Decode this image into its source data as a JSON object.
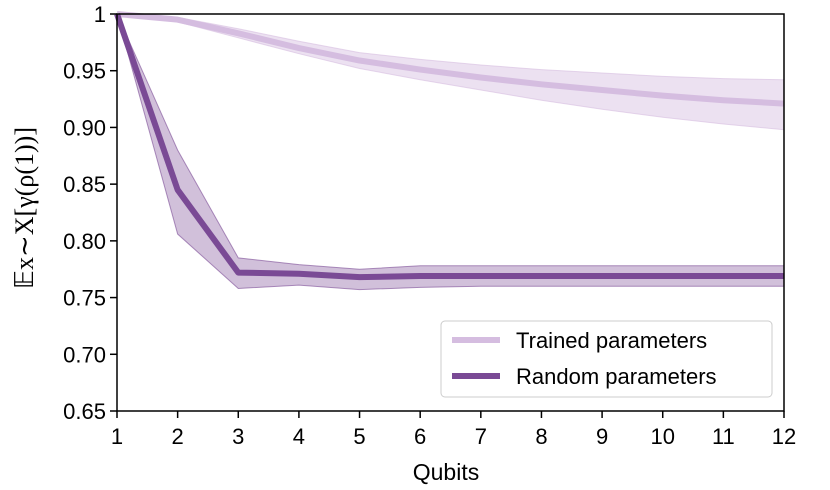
{
  "chart_data": {
    "type": "line",
    "xlabel": "Qubits",
    "ylabel": "𝔼x∼X[γ(ρ(1))]",
    "x": [
      1,
      2,
      3,
      4,
      5,
      6,
      7,
      8,
      9,
      10,
      11,
      12
    ],
    "xlim": [
      1,
      12
    ],
    "ylim": [
      0.65,
      1.0
    ],
    "xticks": [
      "1",
      "2",
      "3",
      "4",
      "5",
      "6",
      "7",
      "8",
      "9",
      "10",
      "11",
      "12"
    ],
    "yticks": [
      "0.65",
      "0.70",
      "0.75",
      "0.80",
      "0.85",
      "0.90",
      "0.95",
      "1"
    ],
    "ytick_values": [
      0.65,
      0.7,
      0.75,
      0.8,
      0.85,
      0.9,
      0.95,
      1.0
    ],
    "grid": false,
    "legend_position": "bottom-right",
    "series": [
      {
        "name": "Trained parameters",
        "color": "#d5bde0",
        "values": [
          1.0,
          0.995,
          0.983,
          0.97,
          0.959,
          0.951,
          0.944,
          0.938,
          0.933,
          0.928,
          0.924,
          0.921
        ],
        "lower": [
          1.0,
          0.993,
          0.979,
          0.965,
          0.952,
          0.942,
          0.933,
          0.924,
          0.916,
          0.909,
          0.903,
          0.898
        ],
        "upper": [
          1.0,
          0.997,
          0.987,
          0.976,
          0.966,
          0.96,
          0.955,
          0.951,
          0.948,
          0.945,
          0.943,
          0.942
        ]
      },
      {
        "name": "Random parameters",
        "color": "#7a4a95",
        "values": [
          1.0,
          0.845,
          0.772,
          0.771,
          0.768,
          0.769,
          0.769,
          0.769,
          0.769,
          0.769,
          0.769,
          0.769
        ],
        "lower": [
          1.0,
          0.806,
          0.758,
          0.761,
          0.757,
          0.759,
          0.76,
          0.76,
          0.76,
          0.76,
          0.76,
          0.76
        ],
        "upper": [
          1.0,
          0.88,
          0.785,
          0.779,
          0.775,
          0.778,
          0.778,
          0.778,
          0.778,
          0.778,
          0.778,
          0.778
        ]
      }
    ]
  }
}
